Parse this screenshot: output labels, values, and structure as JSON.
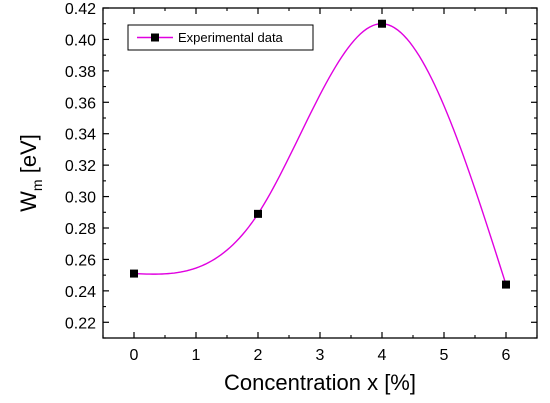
{
  "chart_data": {
    "type": "line",
    "title": "",
    "xlabel": "Concentration x [%]",
    "ylabel_main": "W",
    "ylabel_sub": "m",
    "ylabel_unit": " [eV]",
    "xlim": [
      -0.5,
      6.5
    ],
    "ylim": [
      0.21,
      0.42
    ],
    "xticks": [
      0,
      1,
      2,
      3,
      4,
      5,
      6
    ],
    "xtick_labels": [
      "0",
      "1",
      "2",
      "3",
      "4",
      "5",
      "6"
    ],
    "yticks": [
      0.22,
      0.24,
      0.26,
      0.28,
      0.3,
      0.32,
      0.34,
      0.36,
      0.38,
      0.4,
      0.42
    ],
    "ytick_labels": [
      "0.22",
      "0.24",
      "0.26",
      "0.28",
      "0.30",
      "0.32",
      "0.34",
      "0.36",
      "0.38",
      "0.40",
      "0.42"
    ],
    "grid": false,
    "legend_position": "top-left",
    "series": [
      {
        "name": "Experimental data",
        "marker": "square",
        "marker_color": "#000000",
        "line_color": "#e000e0",
        "x": [
          0,
          2,
          4,
          6
        ],
        "y": [
          0.251,
          0.289,
          0.41,
          0.244
        ]
      }
    ]
  }
}
